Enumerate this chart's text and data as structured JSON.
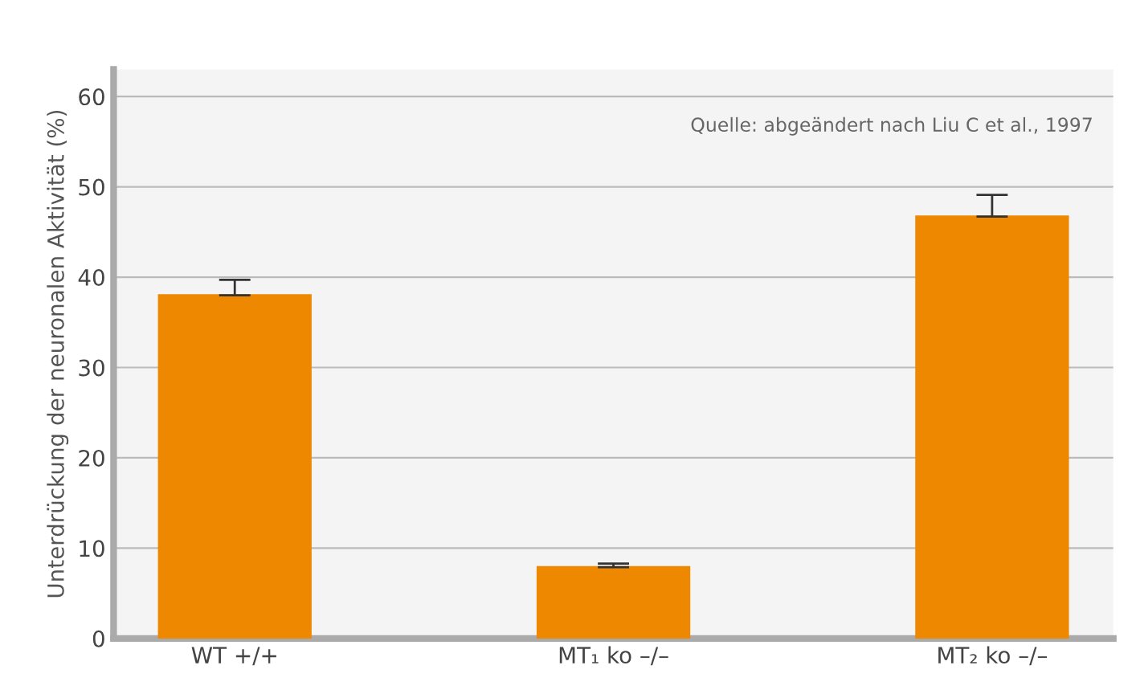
{
  "chart_data": {
    "type": "bar",
    "ylabel": "Unterdrückung der neuronalen Aktivität (%)",
    "categories": [
      "WT +/+",
      "MT₁ ko –/–",
      "MT₂ ko –/–"
    ],
    "values": [
      38.0,
      7.9,
      46.7
    ],
    "errors": [
      [
        38.0,
        39.7
      ],
      [
        7.9,
        8.3
      ],
      [
        46.7,
        49.1
      ]
    ],
    "color": "#ee8800",
    "ylim": [
      0,
      63
    ],
    "yticks": [
      0,
      10,
      20,
      30,
      40,
      50,
      60
    ],
    "grid": "y",
    "annotations": [
      "Quelle: abgeändert nach Liu C et al., 1997"
    ]
  }
}
